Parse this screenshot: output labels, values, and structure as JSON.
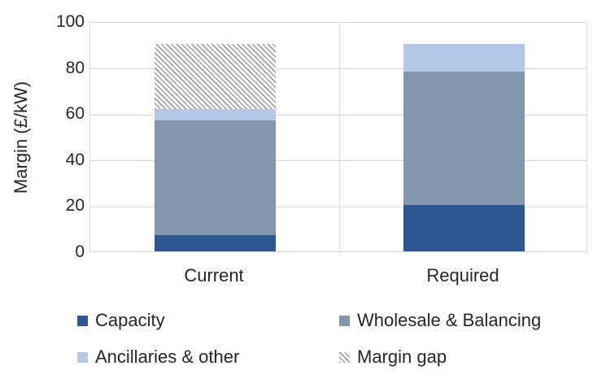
{
  "chart_data": {
    "type": "bar",
    "stacked": true,
    "ylabel": "Margin (£/kW)",
    "ylim": [
      0,
      100
    ],
    "yticks": [
      0,
      20,
      40,
      60,
      80,
      100
    ],
    "categories": [
      "Current",
      "Required"
    ],
    "series": [
      {
        "name": "Capacity",
        "color": "#2e5693",
        "pattern": "solid",
        "values": [
          7,
          20
        ]
      },
      {
        "name": "Wholesale & Balancing",
        "color": "#8496ae",
        "pattern": "solid",
        "values": [
          50,
          58
        ]
      },
      {
        "name": "Ancillaries & other",
        "color": "#b5c7e8",
        "pattern": "solid",
        "values": [
          5,
          12
        ]
      },
      {
        "name": "Margin gap",
        "color": "#9f9f9f",
        "pattern": "diagonal-hatch",
        "values": [
          28,
          0
        ]
      }
    ],
    "grid": "horizontal",
    "legend_position": "bottom-two-columns",
    "colors": {
      "gridline": "#d9d9d9",
      "text": "#262626",
      "background": "#ffffff"
    }
  }
}
